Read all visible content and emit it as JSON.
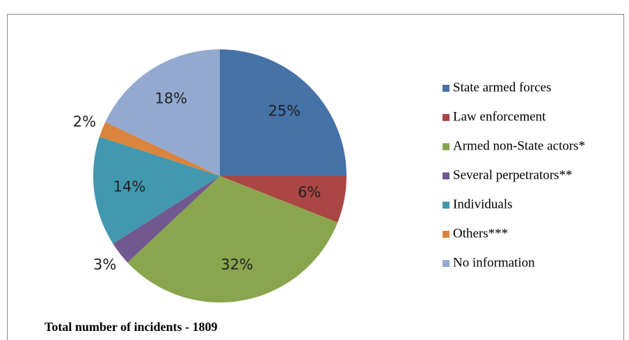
{
  "chart_data": {
    "type": "pie",
    "categories": [
      "State armed forces",
      "Law enforcement",
      "Armed non-State actors*",
      "Several perpetrators**",
      "Individuals",
      "Others***",
      "No information"
    ],
    "values": [
      25,
      6,
      32,
      3,
      14,
      2,
      18
    ],
    "value_labels": [
      "25%",
      "6%",
      "32%",
      "3%",
      "14%",
      "2%",
      "18%"
    ],
    "colors": [
      "#4572a7",
      "#aa4643",
      "#89a54e",
      "#71588f",
      "#4198af",
      "#db843d",
      "#93a9cf"
    ],
    "legend": "right",
    "annotation": "Total number of incidents - 1809"
  }
}
